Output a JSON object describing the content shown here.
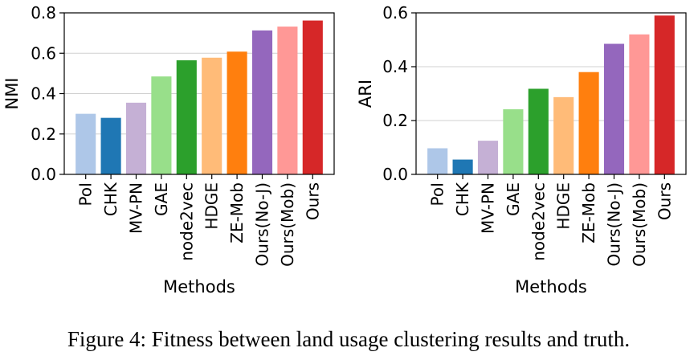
{
  "caption": "Figure 4: Fitness between land usage clustering results and truth.",
  "chart_data": [
    {
      "type": "bar",
      "categories": [
        "PoI",
        "CHK",
        "MV-PN",
        "GAE",
        "node2vec",
        "HDGE",
        "ZE-Mob",
        "Ours(No-J)",
        "Ours(Mob)",
        "Ours"
      ],
      "values": [
        0.3,
        0.28,
        0.355,
        0.485,
        0.565,
        0.578,
        0.608,
        0.713,
        0.732,
        0.762
      ],
      "colors": [
        "#aec7e8",
        "#1f77b4",
        "#c5b0d5",
        "#98df8a",
        "#2ca02c",
        "#ffbb78",
        "#ff7f0e",
        "#9467bd",
        "#ff9896",
        "#d62728"
      ],
      "xlabel": "Methods",
      "ylabel": "NMI",
      "ylim": [
        0,
        0.8
      ],
      "yticks": [
        "0.0",
        "0.2",
        "0.4",
        "0.6",
        "0.8"
      ],
      "grid": "horizontal"
    },
    {
      "type": "bar",
      "categories": [
        "PoI",
        "CHK",
        "MV-PN",
        "GAE",
        "node2vec",
        "HDGE",
        "ZE-Mob",
        "Ours(No-J)",
        "Ours(Mob)",
        "Ours"
      ],
      "values": [
        0.097,
        0.055,
        0.125,
        0.242,
        0.318,
        0.287,
        0.38,
        0.485,
        0.52,
        0.59
      ],
      "colors": [
        "#aec7e8",
        "#1f77b4",
        "#c5b0d5",
        "#98df8a",
        "#2ca02c",
        "#ffbb78",
        "#ff7f0e",
        "#9467bd",
        "#ff9896",
        "#d62728"
      ],
      "xlabel": "Methods",
      "ylabel": "ARI",
      "ylim": [
        0,
        0.6
      ],
      "yticks": [
        "0.0",
        "0.2",
        "0.4",
        "0.6"
      ],
      "grid": "horizontal"
    }
  ]
}
